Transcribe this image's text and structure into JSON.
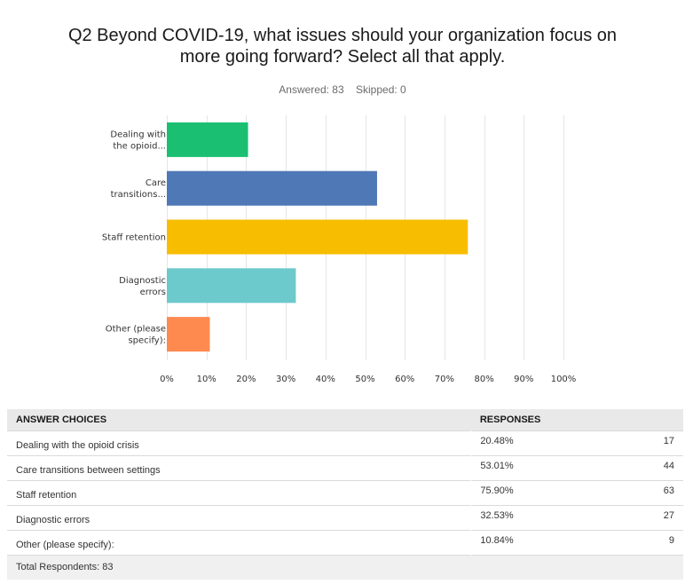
{
  "title_line1": "Q2 Beyond COVID-19, what issues should your organization focus on",
  "title_line2": "more going forward? Select all that apply.",
  "answered": "Answered: 83",
  "skipped": "Skipped: 0",
  "chart_data": {
    "type": "bar",
    "orientation": "horizontal",
    "categories": [
      [
        "Dealing with",
        "the opioid..."
      ],
      [
        "Care",
        "transitions..."
      ],
      [
        "Staff retention"
      ],
      [
        "Diagnostic",
        "errors"
      ],
      [
        "Other (please",
        "specify):"
      ]
    ],
    "values": [
      20.48,
      53.01,
      75.9,
      32.53,
      10.84
    ],
    "colors": [
      "#1bbf72",
      "#4f78b6",
      "#f7bd00",
      "#6cc9cc",
      "#ff8a4f"
    ],
    "xlim": [
      0,
      100
    ],
    "xticks": [
      "0%",
      "10%",
      "20%",
      "30%",
      "40%",
      "50%",
      "60%",
      "70%",
      "80%",
      "90%",
      "100%"
    ],
    "grid": true
  },
  "table": {
    "headers": [
      "ANSWER CHOICES",
      "RESPONSES"
    ],
    "rows": [
      {
        "choice": "Dealing with the opioid crisis",
        "percent": "20.48%",
        "count": "17"
      },
      {
        "choice": "Care transitions between settings",
        "percent": "53.01%",
        "count": "44"
      },
      {
        "choice": "Staff retention",
        "percent": "75.90%",
        "count": "63"
      },
      {
        "choice": "Diagnostic errors",
        "percent": "32.53%",
        "count": "27"
      },
      {
        "choice": "Other (please specify):",
        "percent": "10.84%",
        "count": "9"
      }
    ],
    "total": "Total Respondents: 83"
  }
}
